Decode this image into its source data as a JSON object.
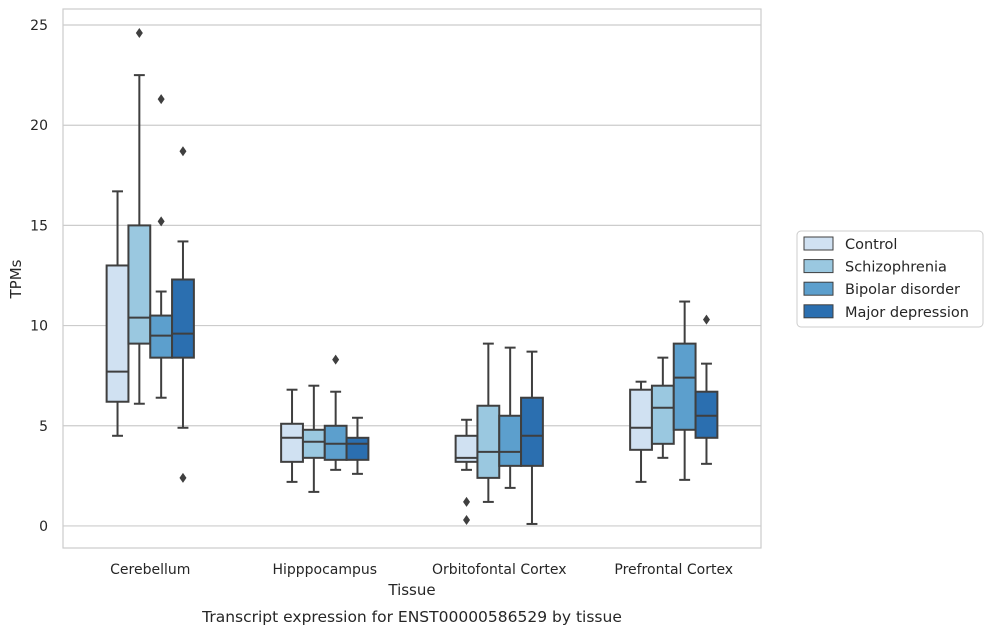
{
  "caption": "Transcript expression for ENST00000586529 by tissue",
  "chart_data": {
    "type": "boxplot",
    "xlabel": "Tissue",
    "ylabel": "TPMs",
    "ylim": [
      -1.1,
      25.8
    ],
    "yticks": [
      "0",
      "5",
      "10",
      "15",
      "20",
      "25"
    ],
    "categories": [
      "Cerebellum",
      "Hipppocampus",
      "Orbitofontal Cortex",
      "Prefrontal Cortex"
    ],
    "grid": "horizontal",
    "legend_position": "right",
    "series": [
      {
        "name": "Control",
        "color": "#d0e1f2",
        "boxes": [
          {
            "whislo": 4.5,
            "q1": 6.2,
            "med": 7.7,
            "q3": 13.0,
            "whishi": 16.7,
            "fliers": []
          },
          {
            "whislo": 2.2,
            "q1": 3.2,
            "med": 4.4,
            "q3": 5.1,
            "whishi": 6.8,
            "fliers": []
          },
          {
            "whislo": 2.8,
            "q1": 3.2,
            "med": 3.4,
            "q3": 4.5,
            "whishi": 5.3,
            "fliers": [
              1.2,
              0.3
            ]
          },
          {
            "whislo": 2.2,
            "q1": 3.8,
            "med": 4.9,
            "q3": 6.8,
            "whishi": 7.2,
            "fliers": []
          }
        ]
      },
      {
        "name": "Schizophrenia",
        "color": "#9ac8e0",
        "boxes": [
          {
            "whislo": 6.1,
            "q1": 9.1,
            "med": 10.4,
            "q3": 15.0,
            "whishi": 22.5,
            "fliers": [
              24.6
            ]
          },
          {
            "whislo": 1.7,
            "q1": 3.4,
            "med": 4.2,
            "q3": 4.8,
            "whishi": 7.0,
            "fliers": []
          },
          {
            "whislo": 1.2,
            "q1": 2.4,
            "med": 3.7,
            "q3": 6.0,
            "whishi": 9.1,
            "fliers": []
          },
          {
            "whislo": 3.4,
            "q1": 4.1,
            "med": 5.9,
            "q3": 7.0,
            "whishi": 8.4,
            "fliers": []
          }
        ]
      },
      {
        "name": "Bipolar disorder",
        "color": "#5c9fcd",
        "boxes": [
          {
            "whislo": 6.4,
            "q1": 8.4,
            "med": 9.5,
            "q3": 10.5,
            "whishi": 11.7,
            "fliers": [
              21.3,
              15.2
            ]
          },
          {
            "whislo": 2.8,
            "q1": 3.3,
            "med": 4.1,
            "q3": 5.0,
            "whishi": 6.7,
            "fliers": [
              8.3
            ]
          },
          {
            "whislo": 1.9,
            "q1": 3.0,
            "med": 3.7,
            "q3": 5.5,
            "whishi": 8.9,
            "fliers": []
          },
          {
            "whislo": 2.3,
            "q1": 4.8,
            "med": 7.4,
            "q3": 9.1,
            "whishi": 11.2,
            "fliers": []
          }
        ]
      },
      {
        "name": "Major depression",
        "color": "#2b6fb0",
        "boxes": [
          {
            "whislo": 4.9,
            "q1": 8.4,
            "med": 9.6,
            "q3": 12.3,
            "whishi": 14.2,
            "fliers": [
              18.7,
              2.4
            ]
          },
          {
            "whislo": 2.6,
            "q1": 3.3,
            "med": 4.1,
            "q3": 4.4,
            "whishi": 5.4,
            "fliers": []
          },
          {
            "whislo": 0.1,
            "q1": 3.0,
            "med": 4.5,
            "q3": 6.4,
            "whishi": 8.7,
            "fliers": []
          },
          {
            "whislo": 3.1,
            "q1": 4.4,
            "med": 5.5,
            "q3": 6.7,
            "whishi": 8.1,
            "fliers": [
              10.3
            ]
          }
        ]
      }
    ]
  }
}
